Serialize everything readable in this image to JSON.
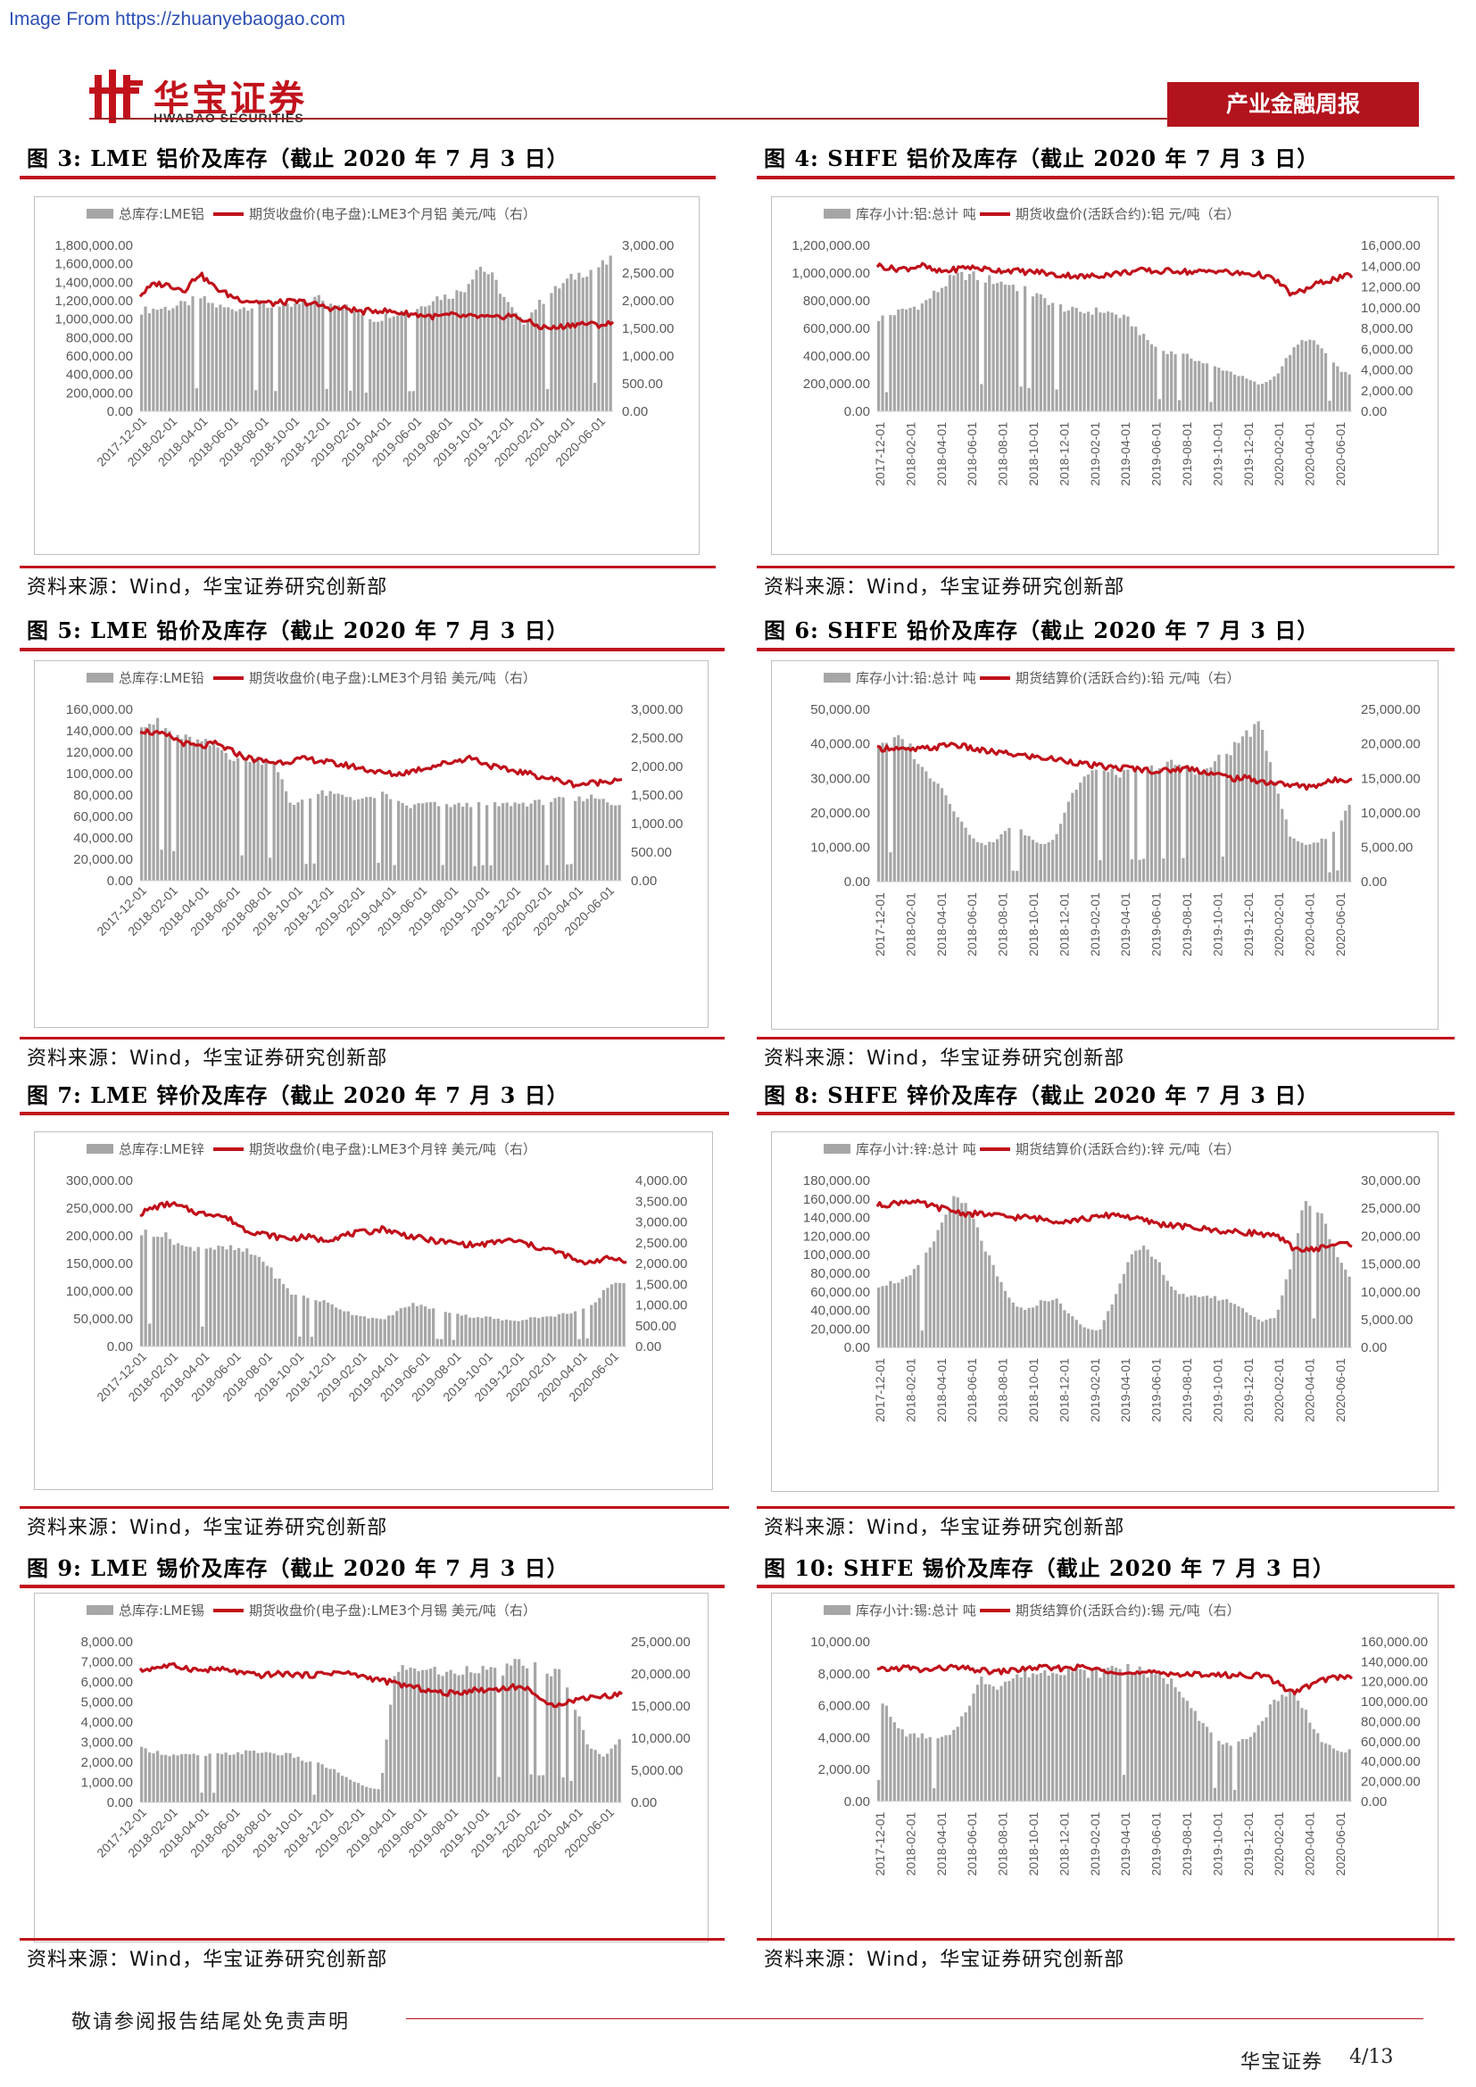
{
  "watermark": "Image From https://zhuanyebaogao.com",
  "header": {
    "logo_cn": "华宝证券",
    "logo_en": "HWABAO SECURITIES",
    "report_tag": "产业金融周报"
  },
  "footer": {
    "disclaimer": "敬请参阅报告结尾处免责声明",
    "brand": "华宝证券",
    "page": "4/13"
  },
  "colors": {
    "brand_red": "#c1121c",
    "bar_gray": "#a6a6a6",
    "price_red": "#c0101a"
  },
  "figures": [
    {
      "title": "图 3: LME 铝价及库存（截止 2020 年 7 月 3 日）",
      "source": "资料来源：Wind，华宝证券研究创新部",
      "legend_bar": "总库存:LME铝",
      "legend_line": "期货收盘价(电子盘):LME3个月铝 美元/吨（右）",
      "left_ticks": [
        "1,800,000.00",
        "1,600,000.00",
        "1,400,000.00",
        "1,200,000.00",
        "1,000,000.00",
        "800,000.00",
        "600,000.00",
        "400,000.00",
        "200,000.00",
        "0.00"
      ],
      "right_ticks": [
        "3,000.00",
        "2,500.00",
        "2,000.00",
        "1,500.00",
        "1,000.00",
        "500.00",
        "0.00"
      ],
      "x_ticks": [
        "2017-12-01",
        "2018-02-01",
        "2018-04-01",
        "2018-06-01",
        "2018-08-01",
        "2018-10-01",
        "2018-12-01",
        "2019-02-01",
        "2019-04-01",
        "2019-06-01",
        "2019-08-01",
        "2019-10-01",
        "2019-12-01",
        "2020-02-01",
        "2020-04-01",
        "2020-06-01"
      ]
    },
    {
      "title": "图 4: SHFE 铝价及库存（截止 2020 年 7 月 3 日）",
      "source": "资料来源：Wind，华宝证券研究创新部",
      "legend_bar": "库存小计:铝:总计 吨",
      "legend_line": "期货收盘价(活跃合约):铝 元/吨（右）",
      "left_ticks": [
        "1,200,000.00",
        "1,000,000.00",
        "800,000.00",
        "600,000.00",
        "400,000.00",
        "200,000.00",
        "0.00"
      ],
      "right_ticks": [
        "16,000.00",
        "14,000.00",
        "12,000.00",
        "10,000.00",
        "8,000.00",
        "6,000.00",
        "4,000.00",
        "2,000.00",
        "0.00"
      ],
      "x_ticks": [
        "2017-12-01",
        "2018-02-01",
        "2018-04-01",
        "2018-06-01",
        "2018-08-01",
        "2018-10-01",
        "2018-12-01",
        "2019-02-01",
        "2019-04-01",
        "2019-06-01",
        "2019-08-01",
        "2019-10-01",
        "2019-12-01",
        "2020-02-01",
        "2020-04-01",
        "2020-06-01"
      ]
    },
    {
      "title": "图 5: LME 铅价及库存（截止 2020 年 7 月 3 日）",
      "source": "资料来源：Wind，华宝证券研究创新部",
      "legend_bar": "总库存:LME铅",
      "legend_line": "期货收盘价(电子盘):LME3个月铅 美元/吨（右）",
      "left_ticks": [
        "160,000.00",
        "140,000.00",
        "120,000.00",
        "100,000.00",
        "80,000.00",
        "60,000.00",
        "40,000.00",
        "20,000.00",
        "0.00"
      ],
      "right_ticks": [
        "3,000.00",
        "2,500.00",
        "2,000.00",
        "1,500.00",
        "1,000.00",
        "500.00",
        "0.00"
      ],
      "x_ticks": [
        "2017-12-01",
        "2018-02-01",
        "2018-04-01",
        "2018-06-01",
        "2018-08-01",
        "2018-10-01",
        "2018-12-01",
        "2019-02-01",
        "2019-04-01",
        "2019-06-01",
        "2019-08-01",
        "2019-10-01",
        "2019-12-01",
        "2020-02-01",
        "2020-04-01",
        "2020-06-01"
      ]
    },
    {
      "title": "图 6: SHFE 铅价及库存（截止 2020 年 7 月 3 日）",
      "source": "资料来源：Wind，华宝证券研究创新部",
      "legend_bar": "库存小计:铅:总计 吨",
      "legend_line": "期货结算价(活跃合约):铅 元/吨（右）",
      "left_ticks": [
        "50,000.00",
        "40,000.00",
        "30,000.00",
        "20,000.00",
        "10,000.00",
        "0.00"
      ],
      "right_ticks": [
        "25,000.00",
        "20,000.00",
        "15,000.00",
        "10,000.00",
        "5,000.00",
        "0.00"
      ],
      "x_ticks": [
        "2017-12-01",
        "2018-02-01",
        "2018-04-01",
        "2018-06-01",
        "2018-08-01",
        "2018-10-01",
        "2018-12-01",
        "2019-02-01",
        "2019-04-01",
        "2019-06-01",
        "2019-08-01",
        "2019-10-01",
        "2019-12-01",
        "2020-02-01",
        "2020-04-01",
        "2020-06-01"
      ]
    },
    {
      "title": "图 7: LME 锌价及库存（截止 2020 年 7 月 3 日）",
      "source": "资料来源：Wind，华宝证券研究创新部",
      "legend_bar": "总库存:LME锌",
      "legend_line": "期货收盘价(电子盘):LME3个月锌 美元/吨（右）",
      "left_ticks": [
        "300,000.00",
        "250,000.00",
        "200,000.00",
        "150,000.00",
        "100,000.00",
        "50,000.00",
        "0.00"
      ],
      "right_ticks": [
        "4,000.00",
        "3,500.00",
        "3,000.00",
        "2,500.00",
        "2,000.00",
        "1,500.00",
        "1,000.00",
        "500.00",
        "0.00"
      ],
      "x_ticks": [
        "2017-12-01",
        "2018-02-01",
        "2018-04-01",
        "2018-06-01",
        "2018-08-01",
        "2018-10-01",
        "2018-12-01",
        "2019-02-01",
        "2019-04-01",
        "2019-06-01",
        "2019-08-01",
        "2019-10-01",
        "2019-12-01",
        "2020-02-01",
        "2020-04-01",
        "2020-06-01"
      ]
    },
    {
      "title": "图 8: SHFE 锌价及库存（截止 2020 年 7 月 3 日）",
      "source": "资料来源：Wind，华宝证券研究创新部",
      "legend_bar": "库存小计:锌:总计 吨",
      "legend_line": "期货结算价(活跃合约):锌 元/吨（右）",
      "left_ticks": [
        "180,000.00",
        "160,000.00",
        "140,000.00",
        "120,000.00",
        "100,000.00",
        "80,000.00",
        "60,000.00",
        "40,000.00",
        "20,000.00",
        "0.00"
      ],
      "right_ticks": [
        "30,000.00",
        "25,000.00",
        "20,000.00",
        "15,000.00",
        "10,000.00",
        "5,000.00",
        "0.00"
      ],
      "x_ticks": [
        "2017-12-01",
        "2018-02-01",
        "2018-04-01",
        "2018-06-01",
        "2018-08-01",
        "2018-10-01",
        "2018-12-01",
        "2019-02-01",
        "2019-04-01",
        "2019-06-01",
        "2019-08-01",
        "2019-10-01",
        "2019-12-01",
        "2020-02-01",
        "2020-04-01",
        "2020-06-01"
      ]
    },
    {
      "title": "图 9: LME 锡价及库存（截止 2020 年 7 月 3 日）",
      "source": "资料来源：Wind，华宝证券研究创新部",
      "legend_bar": "总库存:LME锡",
      "legend_line": "期货收盘价(电子盘):LME3个月锡 美元/吨（右）",
      "left_ticks": [
        "8,000.00",
        "7,000.00",
        "6,000.00",
        "5,000.00",
        "4,000.00",
        "3,000.00",
        "2,000.00",
        "1,000.00",
        "0.00"
      ],
      "right_ticks": [
        "25,000.00",
        "20,000.00",
        "15,000.00",
        "10,000.00",
        "5,000.00",
        "0.00"
      ],
      "x_ticks": [
        "2017-12-01",
        "2018-02-01",
        "2018-04-01",
        "2018-06-01",
        "2018-08-01",
        "2018-10-01",
        "2018-12-01",
        "2019-02-01",
        "2019-04-01",
        "2019-06-01",
        "2019-08-01",
        "2019-10-01",
        "2019-12-01",
        "2020-02-01",
        "2020-04-01",
        "2020-06-01"
      ]
    },
    {
      "title": "图 10: SHFE 锡价及库存（截止 2020 年 7 月 3 日）",
      "source": "资料来源：Wind，华宝证券研究创新部",
      "legend_bar": "库存小计:锡:总计 吨",
      "legend_line": "期货结算价(活跃合约):锡 元/吨（右）",
      "left_ticks": [
        "10,000.00",
        "8,000.00",
        "6,000.00",
        "4,000.00",
        "2,000.00",
        "0.00"
      ],
      "right_ticks": [
        "160,000.00",
        "140,000.00",
        "120,000.00",
        "100,000.00",
        "80,000.00",
        "60,000.00",
        "40,000.00",
        "20,000.00",
        "0.00"
      ],
      "x_ticks": [
        "2017-12-01",
        "2018-02-01",
        "2018-04-01",
        "2018-06-01",
        "2018-08-01",
        "2018-10-01",
        "2018-12-01",
        "2019-02-01",
        "2019-04-01",
        "2019-06-01",
        "2019-08-01",
        "2019-10-01",
        "2019-12-01",
        "2020-02-01",
        "2020-04-01",
        "2020-06-01"
      ]
    }
  ]
}
